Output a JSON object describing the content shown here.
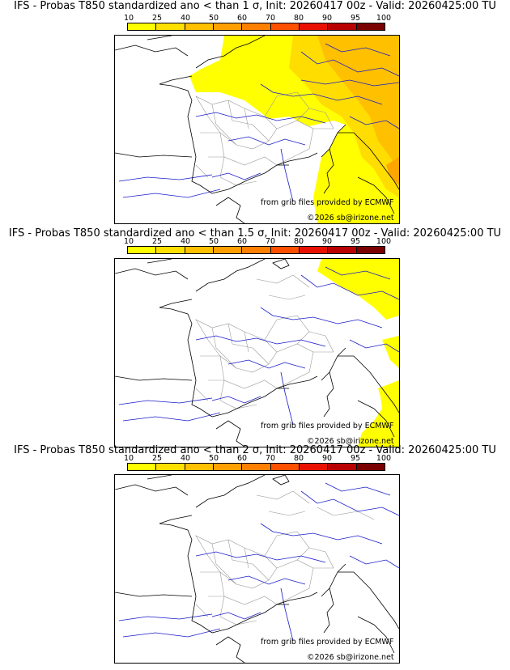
{
  "colorbar": {
    "ticks": [
      "10",
      "25",
      "40",
      "50",
      "60",
      "70",
      "80",
      "90",
      "95",
      "100"
    ],
    "colors": [
      "#ffff00",
      "#ffe000",
      "#ffc000",
      "#ffa000",
      "#ff8000",
      "#ff5000",
      "#e81000",
      "#b80000",
      "#7a0000"
    ]
  },
  "panels": [
    {
      "title": "IFS - Probas T850  standardized ano < than 1 σ, Init: 20260417 00z - Valid: 20260425:00 TU",
      "credit": "from grib files provided by ECMWF",
      "copyright": "©2026 sb@irizone.net"
    },
    {
      "title": "IFS - Probas T850  standardized ano < than 1.5 σ, Init: 20260417 00z - Valid: 20260425:00 TU",
      "credit": "from grib files provided by ECMWF",
      "copyright": "©2026 sb@irizone.net"
    },
    {
      "title": "IFS - Probas T850  standardized ano < than 2 σ, Init: 20260417 00z - Valid: 20260425:00 TU",
      "credit": "from grib files provided by ECMWF",
      "copyright": "©2026 sb@irizone.net"
    }
  ],
  "colors": {
    "prob_low": "#ffff00",
    "prob_mid": "#ffdd00",
    "prob_high": "#ffbb00",
    "prob_peak": "#ffa500",
    "coast": "#000000",
    "rivers": "#0000cc",
    "borders": "#999999"
  }
}
